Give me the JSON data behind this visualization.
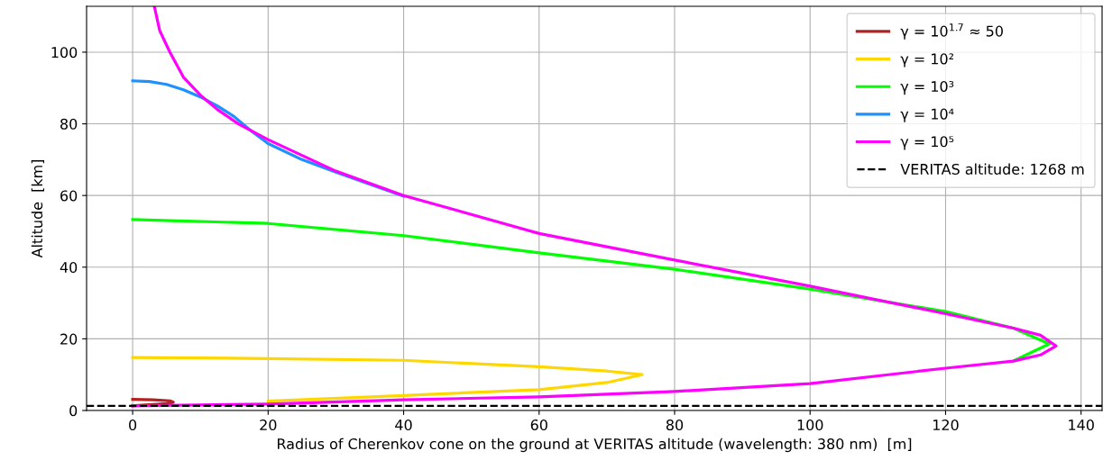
{
  "chart_data": {
    "type": "line",
    "xlabel": "Radius of Cherenkov cone on the ground at VERITAS altitude (wavelength: 380 nm)  [m]",
    "ylabel": "Altitude  [km]",
    "xlim": [
      -6.8,
      143.1
    ],
    "ylim": [
      0,
      112.8
    ],
    "xticks": [
      0,
      20,
      40,
      60,
      80,
      100,
      120,
      140
    ],
    "yticks": [
      0,
      20,
      40,
      60,
      80,
      100
    ],
    "grid": true,
    "legend": "top right",
    "line_style": "solid",
    "marker": "none",
    "series": [
      {
        "name": "γ = 10$^{1.7}$ ≈ 50",
        "color": "#b22222",
        "x": [
          0,
          3,
          5.5,
          6,
          5,
          0
        ],
        "values": [
          3.1,
          3.0,
          2.7,
          2.3,
          1.9,
          1.3
        ]
      },
      {
        "name": "γ = 10²",
        "color": "#ffd700",
        "x": [
          0,
          20,
          40,
          60,
          70,
          75.2,
          70,
          60,
          40,
          20
        ],
        "values": [
          14.8,
          14.5,
          14,
          12.2,
          11,
          10,
          7.8,
          5.8,
          4.2,
          2.6
        ]
      },
      {
        "name": "γ = 10³",
        "color": "#00ff00",
        "x": [
          0,
          20,
          40,
          60,
          80,
          100,
          120,
          130,
          135.3,
          130
        ],
        "values": [
          53.3,
          52.2,
          48.8,
          44,
          39.4,
          33.9,
          27.6,
          23,
          18.6,
          13.8
        ]
      },
      {
        "name": "γ = 10⁴",
        "color": "#1e90ff",
        "x": [
          0,
          2.5,
          5,
          7.5,
          10,
          12.5,
          15,
          17.5,
          20,
          25,
          30,
          40
        ],
        "values": [
          92,
          91.8,
          91,
          89.5,
          87.5,
          85,
          82,
          78,
          74.5,
          70,
          66.5,
          59.8
        ]
      },
      {
        "name": "γ = 10⁵",
        "color": "#ff00ff",
        "x": [
          3.2,
          4,
          5.5,
          7.5,
          10,
          12.5,
          15.6,
          20,
          30,
          40,
          60,
          80,
          100,
          120,
          130,
          134,
          136.3,
          134,
          130,
          120,
          100,
          80,
          60,
          40,
          20,
          0
        ],
        "values": [
          112.8,
          106,
          100,
          93,
          88,
          84,
          80,
          75.6,
          66.8,
          60,
          49.4,
          42,
          34.7,
          27,
          23,
          21,
          18,
          15.5,
          13.8,
          11.8,
          7.5,
          5.3,
          3.8,
          3,
          1.8,
          1.3
        ]
      }
    ],
    "ref_lines": [
      {
        "axis": "y",
        "value": 1.268,
        "label": "VERITAS altitude: 1268 m",
        "color": "#000000",
        "line_style": "dashed"
      }
    ]
  }
}
